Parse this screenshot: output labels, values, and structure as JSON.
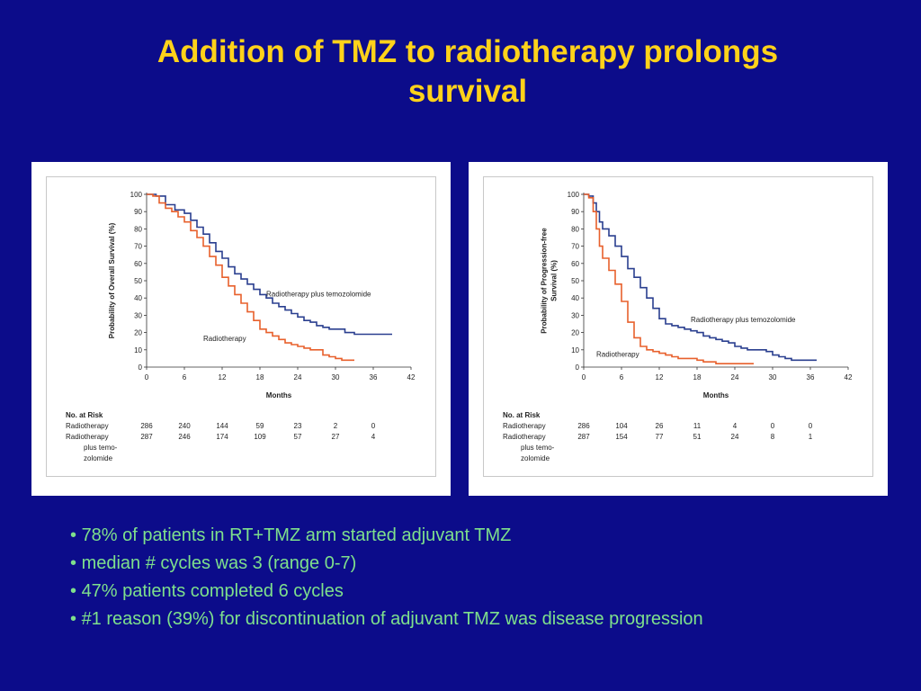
{
  "slide": {
    "title_line1": "Addition of TMZ to radiotherapy prolongs",
    "title_line2": "survival",
    "bullets": [
      "78% of patients in RT+TMZ arm started adjuvant TMZ",
      "median # cycles was 3 (range 0-7)",
      "47% patients completed 6 cycles",
      "#1 reason (39%) for discontinuation of adjuvant TMZ was disease progression"
    ],
    "colors": {
      "background": "#0c0c8a",
      "title": "#ffd21a",
      "bullet_text": "#7ee08c",
      "radiotherapy_line": "#e8602c",
      "temozolomide_line": "#2a3f8f"
    }
  },
  "chart_data": [
    {
      "type": "line",
      "title": "",
      "xlabel": "Months",
      "ylabel": "Probability of Overall Survival (%)",
      "xlim": [
        0,
        42
      ],
      "ylim": [
        0,
        100
      ],
      "xticks": [
        0,
        6,
        12,
        18,
        24,
        30,
        36,
        42
      ],
      "yticks": [
        0,
        10,
        20,
        30,
        40,
        50,
        60,
        70,
        80,
        90,
        100
      ],
      "series": [
        {
          "name": "Radiotherapy plus temozolomide",
          "color": "#2a3f8f",
          "points": [
            [
              0,
              100
            ],
            [
              1.5,
              99
            ],
            [
              3,
              94
            ],
            [
              4.5,
              91
            ],
            [
              6,
              89
            ],
            [
              7,
              85
            ],
            [
              8,
              81
            ],
            [
              9,
              77
            ],
            [
              10,
              72
            ],
            [
              11,
              67
            ],
            [
              12,
              63
            ],
            [
              13,
              58
            ],
            [
              14,
              54
            ],
            [
              15,
              51
            ],
            [
              16,
              48
            ],
            [
              17,
              45
            ],
            [
              18,
              42
            ],
            [
              19,
              40
            ],
            [
              20,
              37
            ],
            [
              21,
              35
            ],
            [
              22,
              33
            ],
            [
              23,
              31
            ],
            [
              24,
              29
            ],
            [
              25,
              27
            ],
            [
              26,
              26
            ],
            [
              27,
              24
            ],
            [
              28,
              23
            ],
            [
              29,
              22
            ],
            [
              30,
              22
            ],
            [
              31,
              22
            ],
            [
              31.5,
              20
            ],
            [
              33,
              19
            ],
            [
              36,
              19
            ],
            [
              39,
              19
            ]
          ]
        },
        {
          "name": "Radiotherapy",
          "color": "#e8602c",
          "points": [
            [
              0,
              100
            ],
            [
              1,
              99
            ],
            [
              2,
              95
            ],
            [
              3,
              92
            ],
            [
              4,
              90
            ],
            [
              5,
              87
            ],
            [
              6,
              84
            ],
            [
              7,
              79
            ],
            [
              8,
              75
            ],
            [
              9,
              70
            ],
            [
              10,
              64
            ],
            [
              11,
              59
            ],
            [
              12,
              52
            ],
            [
              13,
              47
            ],
            [
              14,
              42
            ],
            [
              15,
              37
            ],
            [
              16,
              32
            ],
            [
              17,
              27
            ],
            [
              18,
              22
            ],
            [
              19,
              20
            ],
            [
              20,
              18
            ],
            [
              21,
              16
            ],
            [
              22,
              14
            ],
            [
              23,
              13
            ],
            [
              24,
              12
            ],
            [
              25,
              11
            ],
            [
              26,
              10
            ],
            [
              27,
              10
            ],
            [
              28,
              7
            ],
            [
              29,
              6
            ],
            [
              30,
              5
            ],
            [
              31,
              4
            ],
            [
              32,
              4
            ],
            [
              33,
              4
            ]
          ]
        }
      ],
      "annotations": [
        {
          "text": "Radiotherapy plus temozolomide",
          "x": 19,
          "y": 41
        },
        {
          "text": "Radiotherapy",
          "x": 9,
          "y": 15
        }
      ],
      "risk_table": {
        "heading": "No. at Risk",
        "rows": [
          {
            "label_lines": [
              "Radiotherapy"
            ],
            "values": [
              "286",
              "240",
              "144",
              "59",
              "23",
              "2",
              "0"
            ]
          },
          {
            "label_lines": [
              "Radiotherapy",
              "plus temo-",
              "zolomide"
            ],
            "values": [
              "287",
              "246",
              "174",
              "109",
              "57",
              "27",
              "4"
            ]
          }
        ]
      }
    },
    {
      "type": "line",
      "title": "",
      "xlabel": "Months",
      "ylabel_lines": [
        "Probability of  Progression-free",
        "Survival (%)"
      ],
      "xlim": [
        0,
        42
      ],
      "ylim": [
        0,
        100
      ],
      "xticks": [
        0,
        6,
        12,
        18,
        24,
        30,
        36,
        42
      ],
      "yticks": [
        0,
        10,
        20,
        30,
        40,
        50,
        60,
        70,
        80,
        90,
        100
      ],
      "series": [
        {
          "name": "Radiotherapy plus temozolomide",
          "color": "#2a3f8f",
          "points": [
            [
              0,
              100
            ],
            [
              0.8,
              99
            ],
            [
              1.5,
              95
            ],
            [
              2,
              90
            ],
            [
              2.5,
              84
            ],
            [
              3,
              80
            ],
            [
              4,
              76
            ],
            [
              5,
              70
            ],
            [
              6,
              64
            ],
            [
              7,
              57
            ],
            [
              8,
              52
            ],
            [
              9,
              46
            ],
            [
              10,
              40
            ],
            [
              11,
              34
            ],
            [
              12,
              28
            ],
            [
              13,
              25
            ],
            [
              14,
              24
            ],
            [
              15,
              23
            ],
            [
              16,
              22
            ],
            [
              17,
              21
            ],
            [
              18,
              20
            ],
            [
              19,
              18
            ],
            [
              20,
              17
            ],
            [
              21,
              16
            ],
            [
              22,
              15
            ],
            [
              23,
              14
            ],
            [
              24,
              12
            ],
            [
              25,
              11
            ],
            [
              26,
              10
            ],
            [
              27,
              10
            ],
            [
              28,
              10
            ],
            [
              29,
              9
            ],
            [
              30,
              7
            ],
            [
              31,
              6
            ],
            [
              32,
              5
            ],
            [
              33,
              4
            ],
            [
              34,
              4
            ],
            [
              36,
              4
            ],
            [
              37,
              4
            ]
          ]
        },
        {
          "name": "Radiotherapy",
          "color": "#e8602c",
          "points": [
            [
              0,
              100
            ],
            [
              0.8,
              98
            ],
            [
              1.5,
              90
            ],
            [
              2,
              80
            ],
            [
              2.5,
              70
            ],
            [
              3,
              63
            ],
            [
              4,
              56
            ],
            [
              5,
              48
            ],
            [
              6,
              38
            ],
            [
              7,
              26
            ],
            [
              8,
              17
            ],
            [
              9,
              12
            ],
            [
              10,
              10
            ],
            [
              11,
              9
            ],
            [
              12,
              8
            ],
            [
              13,
              7
            ],
            [
              14,
              6
            ],
            [
              15,
              5
            ],
            [
              16,
              5
            ],
            [
              17,
              5
            ],
            [
              18,
              4
            ],
            [
              19,
              3
            ],
            [
              20,
              3
            ],
            [
              21,
              2
            ],
            [
              22,
              2
            ],
            [
              24,
              2
            ],
            [
              27,
              2
            ]
          ]
        }
      ],
      "annotations": [
        {
          "text": "Radiotherapy plus temozolomide",
          "x": 17,
          "y": 26
        },
        {
          "text": "Radiotherapy",
          "x": 2,
          "y": 6
        }
      ],
      "risk_table": {
        "heading": "No. at Risk",
        "rows": [
          {
            "label_lines": [
              "Radiotherapy"
            ],
            "values": [
              "286",
              "104",
              "26",
              "11",
              "4",
              "0",
              "0"
            ]
          },
          {
            "label_lines": [
              "Radiotherapy",
              "plus temo-",
              "zolomide"
            ],
            "values": [
              "287",
              "154",
              "77",
              "51",
              "24",
              "8",
              "1"
            ]
          }
        ]
      }
    }
  ]
}
